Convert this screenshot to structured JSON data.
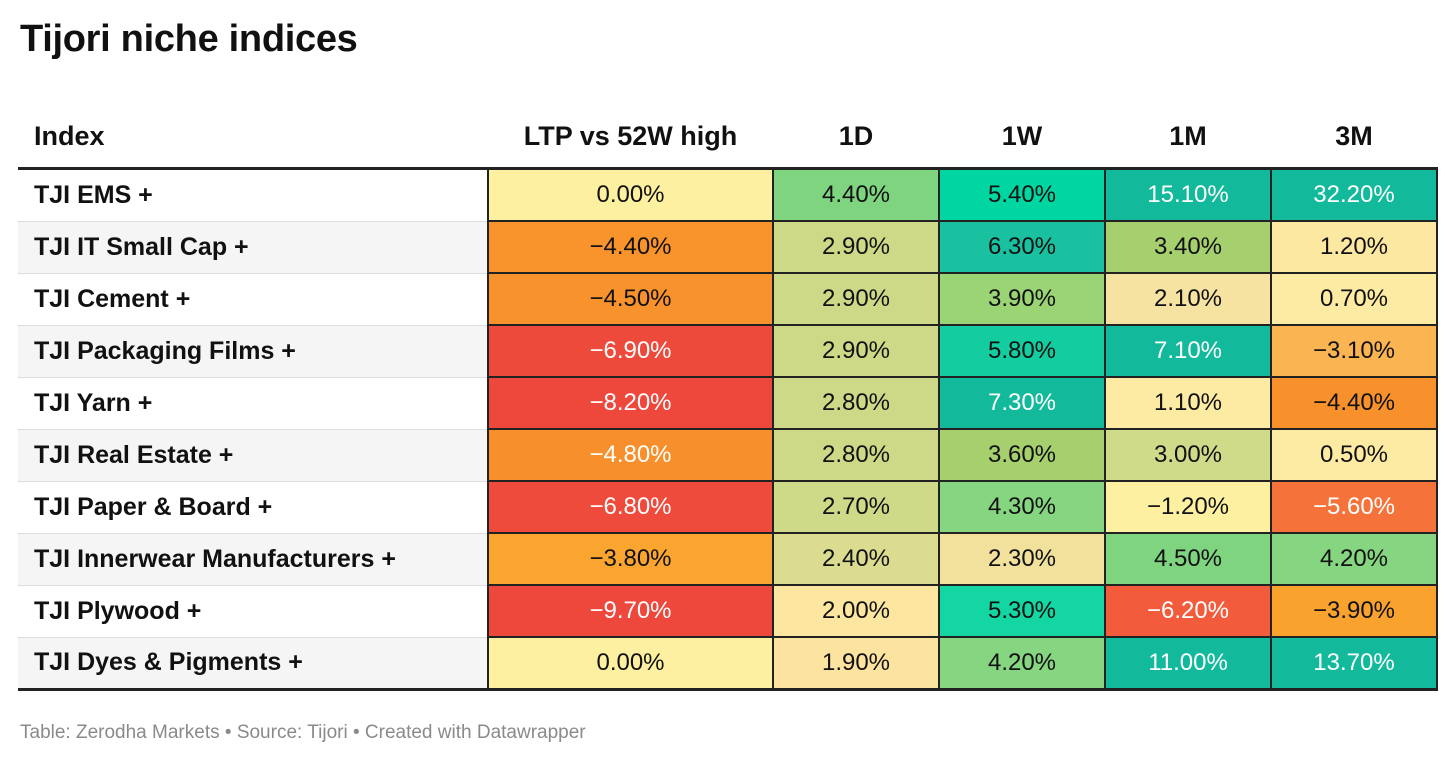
{
  "title": "Tijori niche indices",
  "footer": {
    "parts": [
      "Table: Zerodha Markets",
      "Source: Tijori",
      "Created with Datawrapper"
    ],
    "separator": " • "
  },
  "chart_data": {
    "type": "table",
    "title": "Tijori niche indices",
    "columns": [
      "Index",
      "LTP vs 52W high",
      "1D",
      "1W",
      "1M",
      "3M"
    ],
    "rows": [
      {
        "index": "TJI EMS +",
        "values": [
          "0.00%",
          "4.40%",
          "5.40%",
          "15.10%",
          "32.20%"
        ],
        "colors": [
          "#fdf0a0",
          "#7fd480",
          "#00d6a2",
          "#13b99b",
          "#13b99b"
        ],
        "text_colors": [
          "#111111",
          "#111111",
          "#111111",
          "#ffffff",
          "#ffffff"
        ]
      },
      {
        "index": "TJI IT Small Cap +",
        "values": [
          "-4.40%",
          "2.90%",
          "6.30%",
          "3.40%",
          "1.20%"
        ],
        "colors": [
          "#f9932c",
          "#cdd987",
          "#19c1a0",
          "#a6d06e",
          "#fde8a2"
        ],
        "text_colors": [
          "#111111",
          "#111111",
          "#111111",
          "#111111",
          "#111111"
        ]
      },
      {
        "index": "TJI Cement +",
        "values": [
          "-4.50%",
          "2.90%",
          "3.90%",
          "2.10%",
          "0.70%"
        ],
        "colors": [
          "#f8922c",
          "#cdd987",
          "#9bd474",
          "#f6e3a2",
          "#fdeaa3"
        ],
        "text_colors": [
          "#111111",
          "#111111",
          "#111111",
          "#111111",
          "#111111"
        ]
      },
      {
        "index": "TJI Packaging Films +",
        "values": [
          "-6.90%",
          "2.90%",
          "5.80%",
          "7.10%",
          "-3.10%"
        ],
        "colors": [
          "#ee4a3c",
          "#cdd987",
          "#13cda0",
          "#13b99b",
          "#fbb452"
        ],
        "text_colors": [
          "#ffffff",
          "#111111",
          "#111111",
          "#ffffff",
          "#111111"
        ]
      },
      {
        "index": "TJI Yarn +",
        "values": [
          "-8.20%",
          "2.80%",
          "7.30%",
          "1.10%",
          "-4.40%"
        ],
        "colors": [
          "#ee473b",
          "#cdd987",
          "#13b99b",
          "#fdeaa3",
          "#f8902c"
        ],
        "text_colors": [
          "#ffffff",
          "#111111",
          "#ffffff",
          "#111111",
          "#111111"
        ]
      },
      {
        "index": "TJI Real Estate +",
        "values": [
          "-4.80%",
          "2.80%",
          "3.60%",
          "3.00%",
          "0.50%"
        ],
        "colors": [
          "#f7902c",
          "#cdd987",
          "#a6d06e",
          "#d0db8a",
          "#fdeaa3"
        ],
        "text_colors": [
          "#ffffff",
          "#111111",
          "#111111",
          "#111111",
          "#111111"
        ]
      },
      {
        "index": "TJI Paper & Board +",
        "values": [
          "-6.80%",
          "2.70%",
          "4.30%",
          "-1.20%",
          "-5.60%"
        ],
        "colors": [
          "#ee4b3c",
          "#cfda89",
          "#86d580",
          "#fdf0a0",
          "#f5723a"
        ],
        "text_colors": [
          "#ffffff",
          "#111111",
          "#111111",
          "#111111",
          "#ffffff"
        ]
      },
      {
        "index": "TJI Innerwear Manufacturers +",
        "values": [
          "-3.80%",
          "2.40%",
          "2.30%",
          "4.50%",
          "4.20%"
        ],
        "colors": [
          "#faa52f",
          "#dbdc90",
          "#f2e19d",
          "#7fd480",
          "#86d580"
        ],
        "text_colors": [
          "#111111",
          "#111111",
          "#111111",
          "#111111",
          "#111111"
        ]
      },
      {
        "index": "TJI Plywood +",
        "values": [
          "-9.70%",
          "2.00%",
          "5.30%",
          "-6.20%",
          "-3.90%"
        ],
        "colors": [
          "#ee473b",
          "#fde6a0",
          "#13d6a2",
          "#f25c3c",
          "#faa22e"
        ],
        "text_colors": [
          "#ffffff",
          "#111111",
          "#111111",
          "#ffffff",
          "#111111"
        ]
      },
      {
        "index": "TJI Dyes & Pigments +",
        "values": [
          "0.00%",
          "1.90%",
          "4.20%",
          "11.00%",
          "13.70%"
        ],
        "colors": [
          "#fdf0a0",
          "#fde3a0",
          "#86d580",
          "#13b99b",
          "#13b99b"
        ],
        "text_colors": [
          "#111111",
          "#111111",
          "#111111",
          "#ffffff",
          "#ffffff"
        ]
      }
    ]
  }
}
